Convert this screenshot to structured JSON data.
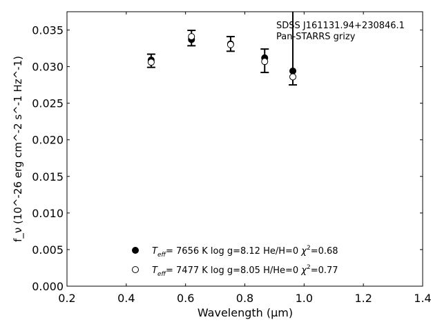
{
  "chart_data": {
    "type": "scatter",
    "xlabel": "Wavelength (μm)",
    "ylabel": "f_ν (10^-26 erg cm^-2 s^-1 Hz^-1)",
    "xlim": [
      0.2,
      1.4
    ],
    "ylim": [
      0.0,
      0.0375
    ],
    "xticks": [
      "0.2",
      "0.4",
      "0.6",
      "0.8",
      "1.0",
      "1.2",
      "1.4"
    ],
    "yticks": [
      "0.000",
      "0.005",
      "0.010",
      "0.015",
      "0.020",
      "0.025",
      "0.030",
      "0.035"
    ],
    "annotation": [
      "SDSS J161131.94+230846.1",
      "Pan-STARRS grizy"
    ],
    "observed": {
      "x": [
        0.484,
        0.62,
        0.752,
        0.867,
        0.962
      ],
      "y": [
        0.0308,
        0.0339,
        0.0331,
        0.0308,
        0.034
      ],
      "err": [
        0.0009,
        0.00105,
        0.001,
        0.0016,
        0.0065
      ]
    },
    "series": [
      {
        "name": "Teff= 7656 K log g=8.12 He/H=0 χ²=0.68",
        "marker": "filled",
        "x": [
          0.484,
          0.62,
          0.752,
          0.867,
          0.962
        ],
        "y": [
          0.0309,
          0.0337,
          0.0331,
          0.0312,
          0.0294
        ]
      },
      {
        "name": "Teff= 7477 K log g=8.05 H/He=0 χ²=0.77",
        "marker": "open",
        "x": [
          0.484,
          0.62,
          0.752,
          0.867,
          0.962
        ],
        "y": [
          0.0306,
          0.0341,
          0.033,
          0.0307,
          0.0286
        ]
      }
    ],
    "legend": [
      {
        "teff": "7656 K",
        "logg": "log g=8.12",
        "comp": "He/H=0",
        "chi": "=0.68"
      },
      {
        "teff": "7477 K",
        "logg": "log g=8.05",
        "comp": "H/He=0",
        "chi": "=0.77"
      }
    ],
    "legend_placement": "lower-center"
  }
}
